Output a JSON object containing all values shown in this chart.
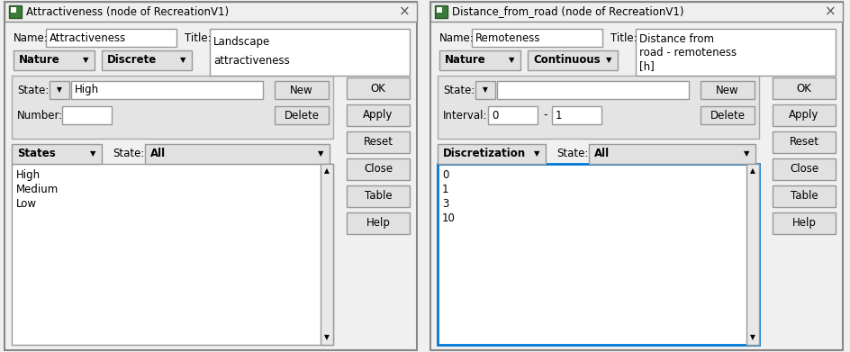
{
  "bg_color": "#f0f0f0",
  "dialog_bg": "#f0f0f0",
  "white": "#ffffff",
  "border_color": "#999999",
  "blue_border": "#0078d7",
  "button_bg": "#e1e1e1",
  "text_color": "#000000",
  "left": {
    "title": "Attractiveness (node of RecreationV1)",
    "name_val": "Attractiveness",
    "title_val": "Landscape\nattractiveness",
    "btn2": "Discrete",
    "state_val": "High",
    "list_label": "States",
    "list_items": [
      "High",
      "Medium",
      "Low"
    ],
    "list_border": "#999999",
    "has_number": true,
    "has_interval": false,
    "right_buttons": [
      "OK",
      "Apply",
      "Reset",
      "Close",
      "Table",
      "Help"
    ]
  },
  "right": {
    "title": "Distance_from_road (node of RecreationV1)",
    "name_val": "Remoteness",
    "title_val": "Distance from\nroad - remoteness\n[h]",
    "btn2": "Continuous",
    "state_val": "",
    "interval_from": "0",
    "interval_to": "1",
    "list_label": "Discretization",
    "list_items": [
      "0",
      "1",
      "3",
      "10"
    ],
    "list_border": "#0078d7",
    "has_number": false,
    "has_interval": true,
    "right_buttons": [
      "OK",
      "Apply",
      "Reset",
      "Close",
      "Table",
      "Help"
    ]
  }
}
